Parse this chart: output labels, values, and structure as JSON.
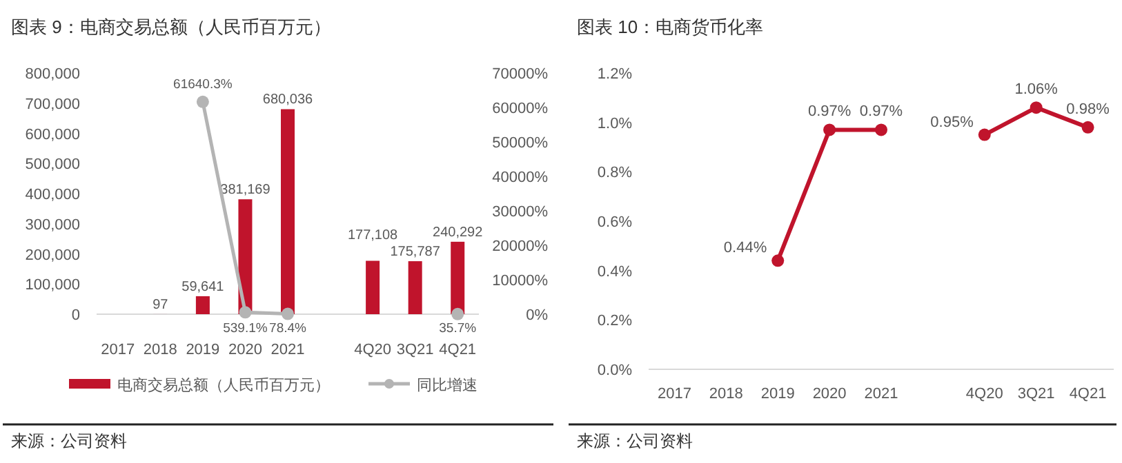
{
  "chart_data": [
    {
      "type": "bar",
      "title": "图表 9：电商交易总额（人民币百万元）",
      "categories": [
        "2017",
        "2018",
        "2019",
        "2020",
        "2021",
        null,
        "4Q20",
        "3Q21",
        "4Q21"
      ],
      "series": [
        {
          "name": "电商交易总额（人民币百万元）",
          "color": "#c0142c",
          "values": [
            null,
            97,
            59641,
            381169,
            680036,
            null,
            177108,
            175787,
            240292
          ],
          "value_labels": [
            null,
            "97",
            "59,641",
            "381,169",
            "680,036",
            null,
            "177,108",
            "175,787",
            "240,292"
          ]
        },
        {
          "name": "同比增速",
          "type": "line",
          "axis": "y2",
          "color": "#b4b4b4",
          "marker": "circle",
          "values": [
            null,
            null,
            61640.3,
            539.1,
            78.4,
            null,
            null,
            null,
            35.7
          ],
          "value_labels": [
            null,
            null,
            "61640.3%",
            "539.1%",
            "78.4%",
            null,
            null,
            null,
            "35.7%"
          ]
        }
      ],
      "ylim": [
        0,
        800000
      ],
      "yticks": [
        0,
        {
          "value": 100000,
          "label": "100,000"
        },
        {
          "value": 200000,
          "label": "200,000"
        },
        {
          "value": 300000,
          "label": "300,000"
        },
        {
          "value": 400000,
          "label": "400,000"
        },
        {
          "value": 500000,
          "label": "500,000"
        },
        {
          "value": 600000,
          "label": "600,000"
        },
        {
          "value": 700000,
          "label": "700,000"
        },
        {
          "value": 800000,
          "label": "800,000"
        }
      ],
      "y2lim": [
        0,
        70000
      ],
      "y2ticks": [
        {
          "value": 0,
          "label": "0%"
        },
        {
          "value": 10000,
          "label": "10000%"
        },
        {
          "value": 20000,
          "label": "20000%"
        },
        {
          "value": 30000,
          "label": "30000%"
        },
        {
          "value": 40000,
          "label": "40000%"
        },
        {
          "value": 50000,
          "label": "50000%"
        },
        {
          "value": 60000,
          "label": "60000%"
        },
        {
          "value": 70000,
          "label": "70000%"
        }
      ],
      "legend": "bottom",
      "annotations": [
        "来源：公司资料"
      ]
    },
    {
      "type": "line",
      "title": "图表 10：电商货币化率",
      "categories": [
        "2017",
        "2018",
        "2019",
        "2020",
        "2021",
        null,
        "4Q20",
        "3Q21",
        "4Q21"
      ],
      "series": [
        {
          "color": "#c0142c",
          "values": [
            null,
            null,
            0.44,
            0.97,
            0.97,
            null,
            0.95,
            1.06,
            0.98
          ],
          "value_labels": [
            null,
            null,
            "0.44%",
            "0.97%",
            "0.97%",
            null,
            "0.95%",
            "1.06%",
            "0.98%"
          ]
        }
      ],
      "marker": "circle",
      "ylim": [
        0,
        1.2
      ],
      "yticks": [
        {
          "value": 0,
          "label": "0.0%"
        },
        {
          "value": 0.2,
          "label": "0.2%"
        },
        {
          "value": 0.4,
          "label": "0.4%"
        },
        {
          "value": 0.6,
          "label": "0.6%"
        },
        {
          "value": 0.8,
          "label": "0.8%"
        },
        {
          "value": 1.0,
          "label": "1.0%"
        },
        {
          "value": 1.2,
          "label": "1.2%"
        }
      ],
      "annotations": [
        "来源：公司资料"
      ]
    }
  ]
}
